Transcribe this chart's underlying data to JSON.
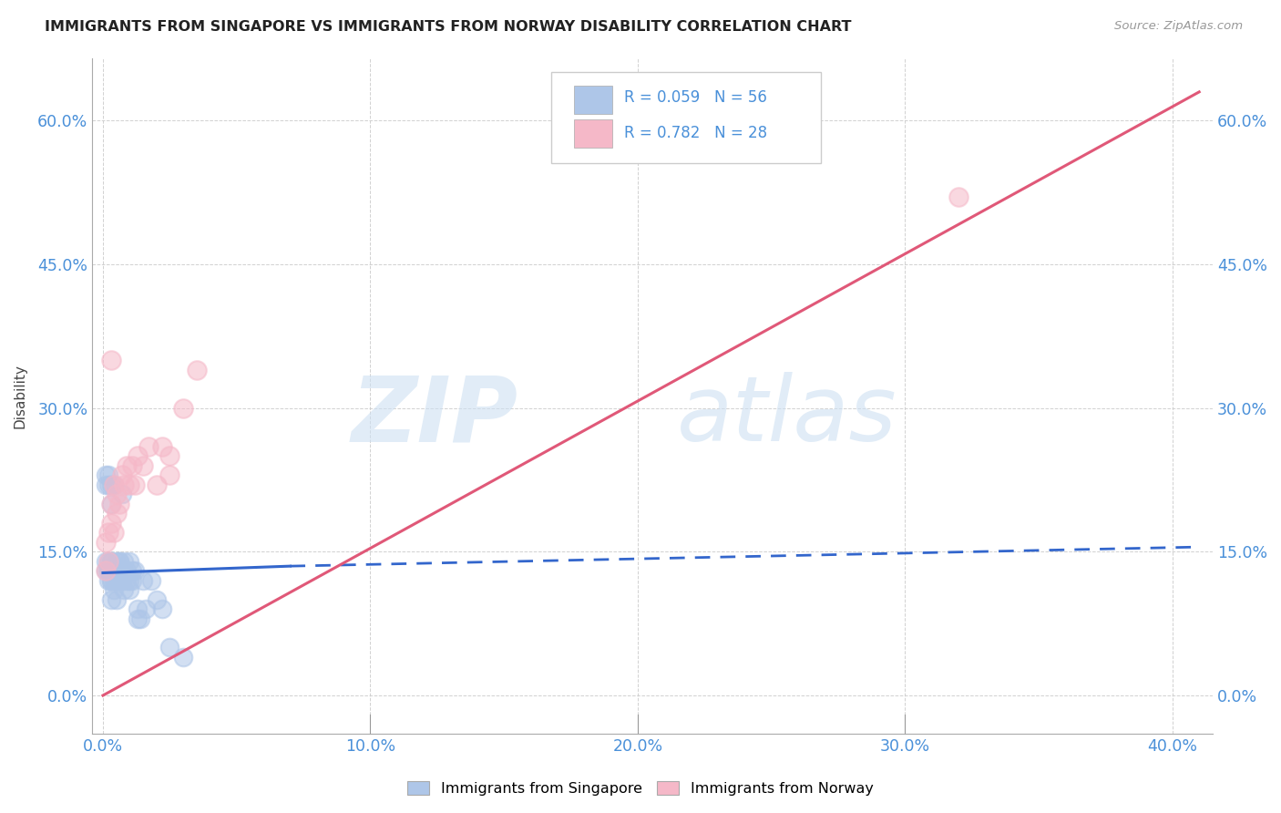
{
  "title": "IMMIGRANTS FROM SINGAPORE VS IMMIGRANTS FROM NORWAY DISABILITY CORRELATION CHART",
  "source": "Source: ZipAtlas.com",
  "xlabel_ticks": [
    "0.0%",
    "10.0%",
    "20.0%",
    "30.0%",
    "40.0%"
  ],
  "xlabel_tick_vals": [
    0.0,
    0.1,
    0.2,
    0.3,
    0.4
  ],
  "ylabel_ticks": [
    "0.0%",
    "15.0%",
    "30.0%",
    "45.0%",
    "60.0%"
  ],
  "ylabel_tick_vals": [
    0.0,
    0.15,
    0.3,
    0.45,
    0.6
  ],
  "xlim": [
    -0.004,
    0.415
  ],
  "ylim": [
    -0.04,
    0.665
  ],
  "singapore_R": 0.059,
  "singapore_N": 56,
  "norway_R": 0.782,
  "norway_N": 28,
  "singapore_color": "#aec6e8",
  "norway_color": "#f5b8c8",
  "singapore_line_color": "#3366cc",
  "norway_line_color": "#e05878",
  "tick_color": "#4a90d9",
  "singapore_x": [
    0.001,
    0.001,
    0.001,
    0.001,
    0.002,
    0.002,
    0.002,
    0.002,
    0.002,
    0.002,
    0.003,
    0.003,
    0.003,
    0.003,
    0.003,
    0.003,
    0.003,
    0.003,
    0.004,
    0.004,
    0.004,
    0.004,
    0.004,
    0.005,
    0.005,
    0.005,
    0.005,
    0.005,
    0.006,
    0.006,
    0.006,
    0.006,
    0.007,
    0.007,
    0.007,
    0.008,
    0.008,
    0.008,
    0.009,
    0.009,
    0.01,
    0.01,
    0.01,
    0.011,
    0.011,
    0.012,
    0.013,
    0.013,
    0.014,
    0.015,
    0.016,
    0.018,
    0.02,
    0.022,
    0.025,
    0.03
  ],
  "singapore_y": [
    0.13,
    0.14,
    0.22,
    0.23,
    0.12,
    0.13,
    0.22,
    0.23,
    0.13,
    0.14,
    0.1,
    0.12,
    0.13,
    0.14,
    0.2,
    0.22,
    0.12,
    0.14,
    0.11,
    0.12,
    0.13,
    0.22,
    0.13,
    0.1,
    0.12,
    0.13,
    0.14,
    0.13,
    0.12,
    0.13,
    0.14,
    0.14,
    0.12,
    0.13,
    0.21,
    0.11,
    0.13,
    0.14,
    0.12,
    0.13,
    0.11,
    0.12,
    0.14,
    0.12,
    0.13,
    0.13,
    0.09,
    0.08,
    0.08,
    0.12,
    0.09,
    0.12,
    0.1,
    0.09,
    0.05,
    0.04
  ],
  "norway_x": [
    0.001,
    0.001,
    0.002,
    0.002,
    0.003,
    0.003,
    0.004,
    0.004,
    0.005,
    0.005,
    0.006,
    0.007,
    0.008,
    0.009,
    0.01,
    0.011,
    0.012,
    0.013,
    0.015,
    0.017,
    0.02,
    0.022,
    0.025,
    0.025,
    0.03,
    0.035,
    0.32,
    0.003
  ],
  "norway_y": [
    0.13,
    0.16,
    0.14,
    0.17,
    0.18,
    0.2,
    0.17,
    0.22,
    0.19,
    0.21,
    0.2,
    0.23,
    0.22,
    0.24,
    0.22,
    0.24,
    0.22,
    0.25,
    0.24,
    0.26,
    0.22,
    0.26,
    0.23,
    0.25,
    0.3,
    0.34,
    0.52,
    0.35
  ],
  "sg_line_x0": 0.0,
  "sg_line_y0": 0.128,
  "sg_line_x1": 0.07,
  "sg_line_y1": 0.135,
  "sg_line_xdash0": 0.07,
  "sg_line_ydash0": 0.135,
  "sg_line_xdash1": 0.41,
  "sg_line_ydash1": 0.155,
  "no_line_x0": 0.0,
  "no_line_y0": 0.0,
  "no_line_x1": 0.41,
  "no_line_y1": 0.63
}
